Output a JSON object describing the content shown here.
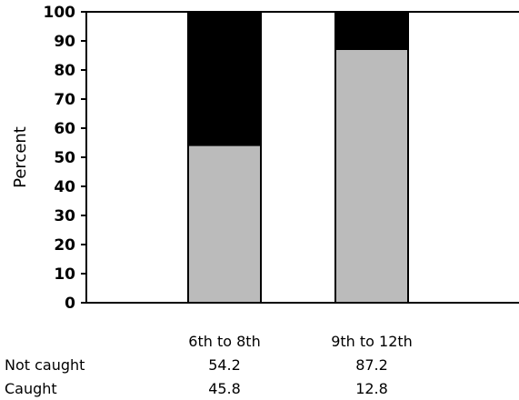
{
  "chart_data": {
    "type": "bar",
    "stacked": true,
    "title": "",
    "xlabel": "",
    "ylabel": "Percent",
    "ylim": [
      0,
      100
    ],
    "yticks": [
      "0",
      "10",
      "20",
      "30",
      "40",
      "50",
      "60",
      "70",
      "80",
      "90",
      "100"
    ],
    "categories": [
      "6th to 8th",
      "9th to 12th"
    ],
    "series": [
      {
        "name": "Not caught",
        "values": [
          54.2,
          87.2
        ],
        "color": "#bbbbbb"
      },
      {
        "name": "Caught",
        "values": [
          45.8,
          12.8
        ],
        "color": "#000000"
      }
    ],
    "grid": false,
    "legend": "none",
    "table": {
      "rows": [
        {
          "label": "Not caught",
          "values": [
            "54.2",
            "87.2"
          ]
        },
        {
          "label": "Caught",
          "values": [
            "45.8",
            "12.8"
          ]
        }
      ]
    }
  }
}
